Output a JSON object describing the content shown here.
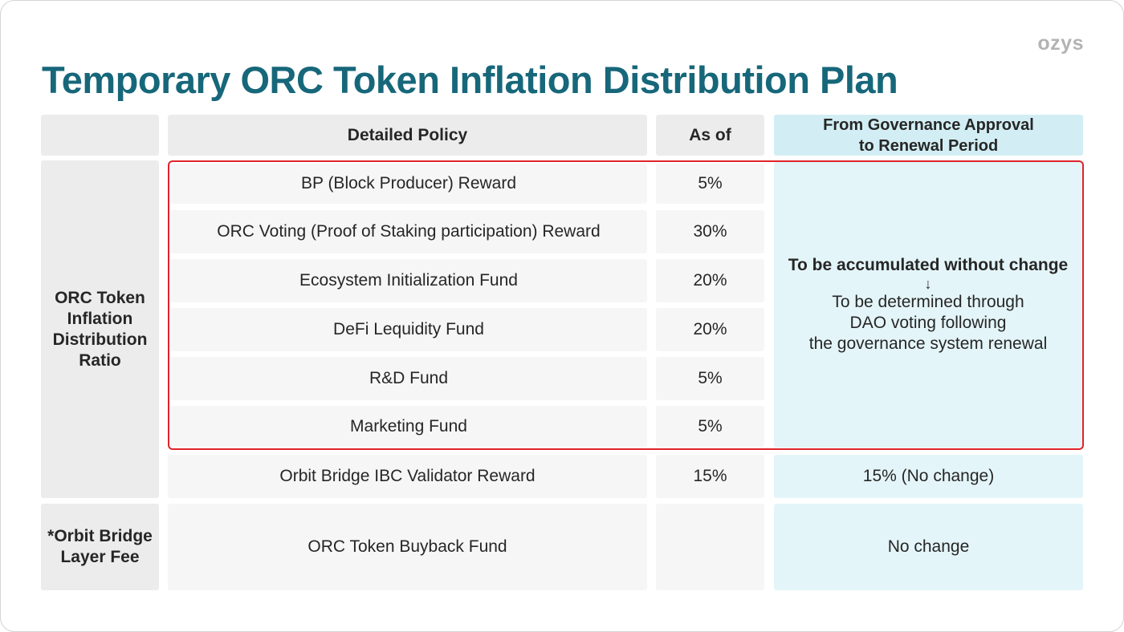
{
  "logo": "ozys",
  "title": "Temporary ORC Token Inflation Distribution Plan",
  "headers": {
    "detailed_policy": "Detailed Policy",
    "as_of": "As of",
    "renewal_line1": "From Governance Approval",
    "renewal_line2": "to Renewal Period"
  },
  "groups": {
    "inflation_ratio": [
      "ORC Token",
      "Inflation",
      "Distribution",
      "Ratio"
    ],
    "layer_fee": [
      "*Orbit Bridge",
      "Layer Fee"
    ]
  },
  "rows": [
    {
      "policy": "BP (Block Producer) Reward",
      "as_of": "5%"
    },
    {
      "policy": "ORC Voting (Proof of Staking participation) Reward",
      "as_of": "30%"
    },
    {
      "policy": "Ecosystem Initialization Fund",
      "as_of": "20%"
    },
    {
      "policy": "DeFi Lequidity Fund",
      "as_of": "20%"
    },
    {
      "policy": "R&D Fund",
      "as_of": "5%"
    },
    {
      "policy": "Marketing Fund",
      "as_of": "5%"
    },
    {
      "policy": "Orbit Bridge IBC Validator Reward",
      "as_of": "15%",
      "renewal": "15% (No change)"
    },
    {
      "policy": "ORC Token Buyback Fund",
      "as_of": "",
      "renewal": "No change"
    }
  ],
  "merged_note": {
    "strong": "To be accumulated without change",
    "arrow": "↓",
    "lines": [
      "To be determined through",
      "DAO voting following",
      "the governance system renewal"
    ]
  },
  "colors": {
    "title": "#17677a",
    "highlight_border": "#e0232a",
    "blue_column": "#e4f5f9",
    "header_blue": "#d2eef4"
  }
}
